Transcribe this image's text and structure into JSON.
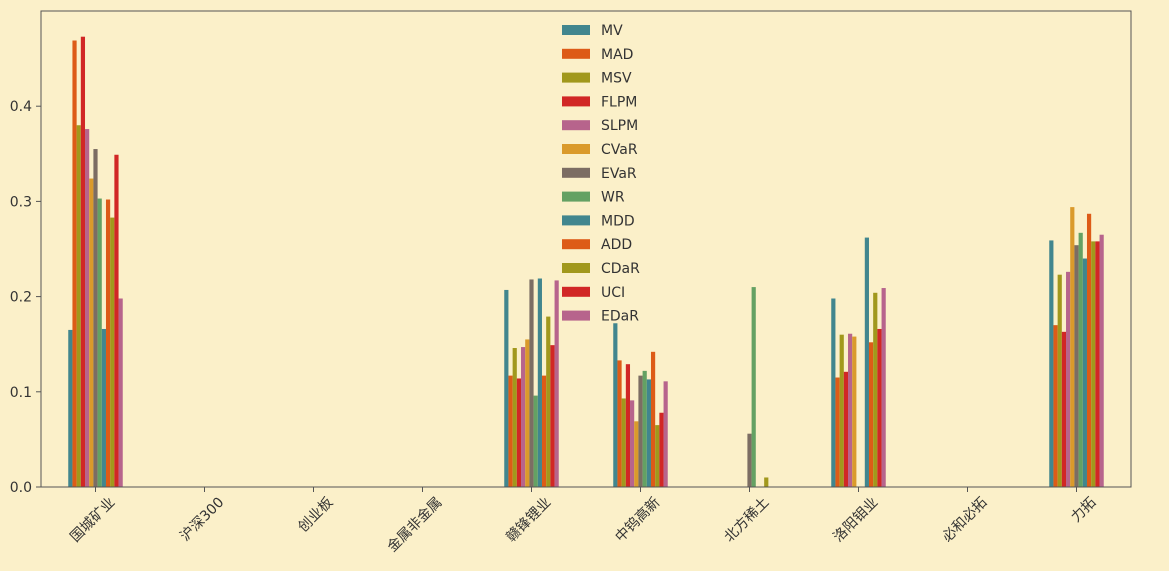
{
  "chart_data": {
    "type": "bar",
    "ylim": [
      0,
      0.5
    ],
    "yticks": [
      0.0,
      0.1,
      0.2,
      0.3,
      0.4
    ],
    "ytick_labels": [
      "0.0",
      "0.1",
      "0.2",
      "0.3",
      "0.4"
    ],
    "legend_position": "top-center",
    "background": "#fbf0c9",
    "axis_color": "#555555",
    "categories": [
      "国城矿业",
      "沪深300",
      "创业板",
      "金属非金属",
      "赣锋锂业",
      "中钨高新",
      "北方稀土",
      "洛阳钼业",
      "必和必拓",
      "力拓"
    ],
    "series": [
      {
        "name": "MV",
        "color": "#41868e",
        "values": [
          0.165,
          0,
          0,
          0,
          0.207,
          0.172,
          0,
          0.198,
          0,
          0.259
        ]
      },
      {
        "name": "MAD",
        "color": "#dd5b17",
        "values": [
          0.469,
          0,
          0,
          0,
          0.117,
          0.133,
          0,
          0.115,
          0,
          0.17
        ]
      },
      {
        "name": "MSV",
        "color": "#a1981c",
        "values": [
          0.38,
          0,
          0,
          0,
          0.146,
          0.093,
          0,
          0.16,
          0,
          0.223
        ]
      },
      {
        "name": "FLPM",
        "color": "#d12725",
        "values": [
          0.473,
          0,
          0,
          0,
          0.114,
          0.129,
          0,
          0.121,
          0,
          0.163
        ]
      },
      {
        "name": "SLPM",
        "color": "#b7648c",
        "values": [
          0.376,
          0,
          0,
          0,
          0.147,
          0.091,
          0,
          0.161,
          0,
          0.226
        ]
      },
      {
        "name": "CVaR",
        "color": "#da9a2b",
        "values": [
          0.324,
          0,
          0,
          0,
          0.155,
          0.069,
          0,
          0.158,
          0,
          0.294
        ]
      },
      {
        "name": "EVaR",
        "color": "#7c6d63",
        "values": [
          0.355,
          0,
          0,
          0,
          0.218,
          0.117,
          0.056,
          0,
          0,
          0.254
        ]
      },
      {
        "name": "WR",
        "color": "#64a163",
        "values": [
          0.303,
          0,
          0,
          0,
          0.096,
          0.122,
          0.21,
          0,
          0,
          0.267
        ]
      },
      {
        "name": "MDD",
        "color": "#41868e",
        "values": [
          0.166,
          0,
          0,
          0,
          0.219,
          0.113,
          0,
          0.262,
          0,
          0.24
        ]
      },
      {
        "name": "ADD",
        "color": "#dd5b17",
        "values": [
          0.302,
          0,
          0,
          0,
          0.117,
          0.142,
          0,
          0.152,
          0,
          0.287
        ]
      },
      {
        "name": "CDaR",
        "color": "#a1981c",
        "values": [
          0.283,
          0,
          0,
          0,
          0.179,
          0.065,
          0.01,
          0.204,
          0,
          0.258
        ]
      },
      {
        "name": "UCI",
        "color": "#d12725",
        "values": [
          0.349,
          0,
          0,
          0,
          0.149,
          0.078,
          0,
          0.166,
          0,
          0.258
        ]
      },
      {
        "name": "EDaR",
        "color": "#b7648c",
        "values": [
          0.198,
          0,
          0,
          0,
          0.217,
          0.111,
          0,
          0.209,
          0,
          0.265
        ]
      }
    ]
  }
}
